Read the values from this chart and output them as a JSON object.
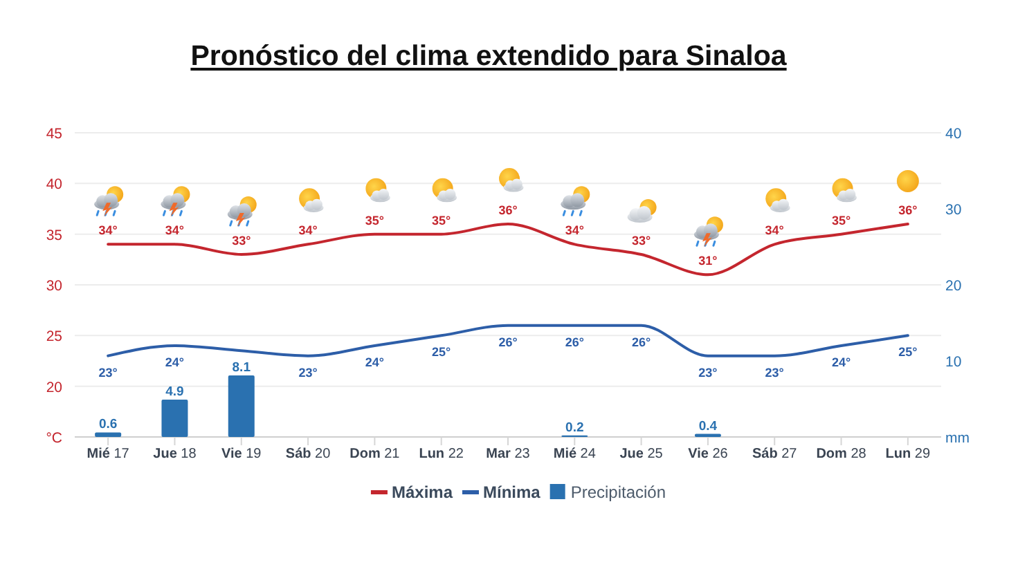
{
  "chart_data": {
    "type": "line",
    "title": "Pronóstico del clima extendido para Sinaloa",
    "categories": [
      "Mié 17",
      "Jue 18",
      "Vie 19",
      "Sáb 20",
      "Dom 21",
      "Lun 22",
      "Mar 23",
      "Mié 24",
      "Jue 25",
      "Vie 26",
      "Sáb 27",
      "Dom 28",
      "Lun 29"
    ],
    "series": [
      {
        "name": "Máxima",
        "color": "#c4262e",
        "values": [
          34,
          34,
          33,
          34,
          35,
          35,
          36,
          34,
          33,
          31,
          34,
          35,
          36
        ],
        "value_labels": [
          "34°",
          "34°",
          "33°",
          "34°",
          "35°",
          "35°",
          "36°",
          "34°",
          "33°",
          "31°",
          "34°",
          "35°",
          "36°"
        ]
      },
      {
        "name": "Mínima",
        "color": "#2d5ea8",
        "values": [
          23,
          24,
          23.5,
          23,
          24,
          25,
          26,
          26,
          26,
          23,
          23,
          24,
          25
        ],
        "value_labels": [
          "23°",
          "24°",
          null,
          "23°",
          "24°",
          "25°",
          "26°",
          "26°",
          "26°",
          "23°",
          "23°",
          "24°",
          "25°"
        ]
      },
      {
        "name": "Precipitación",
        "type": "bar",
        "axis": "y2",
        "color": "#2a71b0",
        "values": [
          0.6,
          4.9,
          8.1,
          null,
          null,
          null,
          null,
          0.2,
          null,
          0.4,
          null,
          null,
          null
        ],
        "value_labels": [
          "0.6",
          "4.9",
          "8.1",
          null,
          null,
          null,
          null,
          "0.2",
          null,
          "0.4",
          null,
          null,
          null
        ]
      }
    ],
    "ylim": [
      15,
      45
    ],
    "yticks": [
      {
        "value": 15,
        "label": "°C"
      },
      20,
      25,
      30,
      35,
      40,
      45
    ],
    "y2lim": [
      0,
      40
    ],
    "y2ticks": [
      {
        "value": 0,
        "label": "mm"
      },
      10,
      20,
      30,
      40
    ],
    "grid": "y",
    "legend": "bottom"
  }
}
